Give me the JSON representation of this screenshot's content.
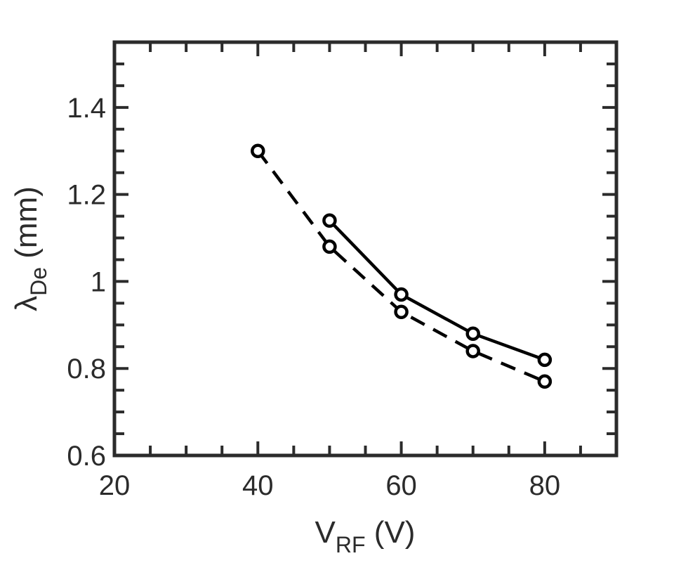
{
  "chart_data": {
    "type": "line",
    "xlabel": {
      "base": "V",
      "sub": "RF",
      "rest": " (V)"
    },
    "ylabel": {
      "base": "λ",
      "sub": "De",
      "rest": " (mm)"
    },
    "xlim": [
      20,
      90
    ],
    "ylim": [
      0.6,
      1.55
    ],
    "xticks": [
      20,
      40,
      60,
      80
    ],
    "xtick_labels": [
      "20",
      "40",
      "60",
      "80"
    ],
    "yticks": [
      0.6,
      0.8,
      1.0,
      1.2,
      1.4
    ],
    "ytick_labels": [
      "0.6",
      "0.8",
      "1",
      "1.2",
      "1.4"
    ],
    "grid": false,
    "colors": {
      "line": "#000000",
      "axis": "#2b2b2b"
    },
    "series": [
      {
        "style": "solid",
        "marker": "open-circle",
        "x": [
          50,
          60,
          70,
          80
        ],
        "y": [
          1.14,
          0.97,
          0.88,
          0.82
        ]
      },
      {
        "style": "dashed",
        "marker": "open-circle",
        "x": [
          40,
          50,
          60,
          70,
          80
        ],
        "y": [
          1.3,
          1.08,
          0.93,
          0.84,
          0.77
        ]
      }
    ]
  }
}
